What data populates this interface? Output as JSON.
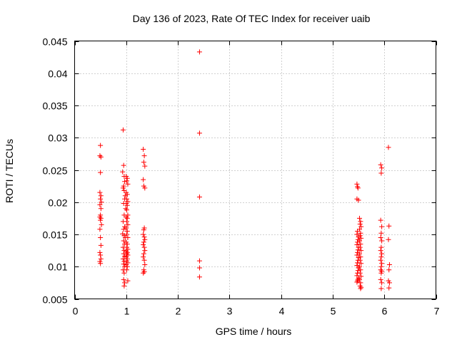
{
  "chart_data": {
    "type": "scatter",
    "title": "Day 136 of 2023, Rate Of TEC Index for receiver uaib",
    "xlabel": "GPS time / hours",
    "ylabel": "ROTI / TECUs",
    "xlim": [
      0,
      7
    ],
    "ylim": [
      0.005,
      0.045
    ],
    "xticks": [
      0,
      1,
      2,
      3,
      4,
      5,
      6,
      7
    ],
    "yticks": [
      0.005,
      0.01,
      0.015,
      0.02,
      0.025,
      0.03,
      0.035,
      0.04,
      0.045
    ],
    "xtick_labels": [
      "0",
      "1",
      "2",
      "3",
      "4",
      "5",
      "6",
      "7"
    ],
    "ytick_labels": [
      "0.005",
      "0.01",
      "0.015",
      "0.02",
      "0.025",
      "0.03",
      "0.035",
      "0.04",
      "0.045"
    ],
    "grid": true,
    "marker": "+",
    "color": "#ff0000",
    "series": [
      {
        "name": "ROTI",
        "points": [
          [
            0.5,
            0.0288
          ],
          [
            0.49,
            0.0272
          ],
          [
            0.51,
            0.027
          ],
          [
            0.5,
            0.0246
          ],
          [
            0.49,
            0.0215
          ],
          [
            0.51,
            0.021
          ],
          [
            0.5,
            0.0205
          ],
          [
            0.52,
            0.02
          ],
          [
            0.49,
            0.0196
          ],
          [
            0.51,
            0.019
          ],
          [
            0.5,
            0.018
          ],
          [
            0.49,
            0.0177
          ],
          [
            0.51,
            0.0175
          ],
          [
            0.5,
            0.0172
          ],
          [
            0.52,
            0.0165
          ],
          [
            0.49,
            0.0158
          ],
          [
            0.5,
            0.0145
          ],
          [
            0.51,
            0.0133
          ],
          [
            0.49,
            0.0122
          ],
          [
            0.5,
            0.0118
          ],
          [
            0.51,
            0.0112
          ],
          [
            0.49,
            0.0108
          ],
          [
            0.5,
            0.0105
          ],
          [
            0.94,
            0.0312
          ],
          [
            0.95,
            0.0257
          ],
          [
            0.93,
            0.0247
          ],
          [
            0.96,
            0.024
          ],
          [
            0.97,
            0.0232
          ],
          [
            0.95,
            0.0225
          ],
          [
            0.94,
            0.0222
          ],
          [
            0.96,
            0.0218
          ],
          [
            0.98,
            0.021
          ],
          [
            0.97,
            0.0205
          ],
          [
            0.95,
            0.0198
          ],
          [
            0.99,
            0.019
          ],
          [
            0.96,
            0.018
          ],
          [
            0.94,
            0.017
          ],
          [
            0.97,
            0.0162
          ],
          [
            0.95,
            0.0158
          ],
          [
            0.93,
            0.0151
          ],
          [
            0.96,
            0.0148
          ],
          [
            0.98,
            0.0145
          ],
          [
            0.95,
            0.014
          ],
          [
            0.97,
            0.0135
          ],
          [
            0.94,
            0.013
          ],
          [
            0.96,
            0.0125
          ],
          [
            0.95,
            0.012
          ],
          [
            0.97,
            0.0116
          ],
          [
            0.94,
            0.0112
          ],
          [
            0.96,
            0.0108
          ],
          [
            0.95,
            0.0104
          ],
          [
            0.97,
            0.01
          ],
          [
            0.94,
            0.0095
          ],
          [
            0.96,
            0.009
          ],
          [
            0.95,
            0.008
          ],
          [
            0.97,
            0.0075
          ],
          [
            0.96,
            0.007
          ],
          [
            1.0,
            0.024
          ],
          [
            1.02,
            0.0237
          ],
          [
            1.01,
            0.0233
          ],
          [
            1.03,
            0.0228
          ],
          [
            1.0,
            0.0215
          ],
          [
            1.02,
            0.0212
          ],
          [
            1.01,
            0.0205
          ],
          [
            1.03,
            0.0201
          ],
          [
            1.0,
            0.0198
          ],
          [
            1.02,
            0.0195
          ],
          [
            1.01,
            0.0188
          ],
          [
            1.03,
            0.018
          ],
          [
            1.0,
            0.0177
          ],
          [
            1.02,
            0.0175
          ],
          [
            1.01,
            0.017
          ],
          [
            1.03,
            0.0165
          ],
          [
            1.0,
            0.016
          ],
          [
            1.02,
            0.0155
          ],
          [
            1.01,
            0.015
          ],
          [
            1.03,
            0.0145
          ],
          [
            1.0,
            0.0138
          ],
          [
            1.02,
            0.0135
          ],
          [
            1.01,
            0.013
          ],
          [
            1.03,
            0.0127
          ],
          [
            1.0,
            0.0124
          ],
          [
            1.02,
            0.0122
          ],
          [
            1.01,
            0.012
          ],
          [
            1.03,
            0.0118
          ],
          [
            1.0,
            0.0115
          ],
          [
            1.02,
            0.0112
          ],
          [
            1.01,
            0.0109
          ],
          [
            1.03,
            0.0106
          ],
          [
            1.0,
            0.0103
          ],
          [
            1.02,
            0.01
          ],
          [
            1.01,
            0.0095
          ],
          [
            1.03,
            0.0078
          ],
          [
            1.33,
            0.0282
          ],
          [
            1.35,
            0.0272
          ],
          [
            1.34,
            0.0262
          ],
          [
            1.36,
            0.0256
          ],
          [
            1.33,
            0.0235
          ],
          [
            1.34,
            0.0225
          ],
          [
            1.36,
            0.0222
          ],
          [
            1.35,
            0.016
          ],
          [
            1.34,
            0.0157
          ],
          [
            1.33,
            0.015
          ],
          [
            1.35,
            0.0146
          ],
          [
            1.36,
            0.0142
          ],
          [
            1.34,
            0.0138
          ],
          [
            1.33,
            0.0134
          ],
          [
            1.35,
            0.013
          ],
          [
            1.36,
            0.0125
          ],
          [
            1.34,
            0.012
          ],
          [
            1.33,
            0.0115
          ],
          [
            1.35,
            0.011
          ],
          [
            1.36,
            0.0103
          ],
          [
            1.34,
            0.0095
          ],
          [
            1.35,
            0.0092
          ],
          [
            1.33,
            0.009
          ],
          [
            2.42,
            0.0433
          ],
          [
            2.42,
            0.0307
          ],
          [
            2.42,
            0.0208
          ],
          [
            2.42,
            0.0109
          ],
          [
            2.42,
            0.0098
          ],
          [
            2.42,
            0.0084
          ],
          [
            5.47,
            0.0228
          ],
          [
            5.48,
            0.0224
          ],
          [
            5.49,
            0.0222
          ],
          [
            5.47,
            0.0205
          ],
          [
            5.5,
            0.0203
          ],
          [
            5.48,
            0.0155
          ],
          [
            5.47,
            0.015
          ],
          [
            5.5,
            0.0146
          ],
          [
            5.49,
            0.0142
          ],
          [
            5.48,
            0.0138
          ],
          [
            5.47,
            0.0134
          ],
          [
            5.5,
            0.013
          ],
          [
            5.49,
            0.0126
          ],
          [
            5.48,
            0.0122
          ],
          [
            5.47,
            0.0118
          ],
          [
            5.5,
            0.0114
          ],
          [
            5.49,
            0.011
          ],
          [
            5.48,
            0.0106
          ],
          [
            5.47,
            0.0102
          ],
          [
            5.5,
            0.0098
          ],
          [
            5.49,
            0.0094
          ],
          [
            5.48,
            0.009
          ],
          [
            5.47,
            0.0086
          ],
          [
            5.5,
            0.0082
          ],
          [
            5.49,
            0.008
          ],
          [
            5.48,
            0.0078
          ],
          [
            5.47,
            0.0076
          ],
          [
            5.52,
            0.0175
          ],
          [
            5.54,
            0.017
          ],
          [
            5.53,
            0.0166
          ],
          [
            5.55,
            0.0162
          ],
          [
            5.52,
            0.0158
          ],
          [
            5.54,
            0.0152
          ],
          [
            5.53,
            0.0148
          ],
          [
            5.55,
            0.0144
          ],
          [
            5.52,
            0.014
          ],
          [
            5.54,
            0.0135
          ],
          [
            5.53,
            0.013
          ],
          [
            5.55,
            0.0125
          ],
          [
            5.52,
            0.012
          ],
          [
            5.54,
            0.0115
          ],
          [
            5.53,
            0.011
          ],
          [
            5.55,
            0.0105
          ],
          [
            5.52,
            0.01
          ],
          [
            5.54,
            0.0095
          ],
          [
            5.53,
            0.009
          ],
          [
            5.55,
            0.0085
          ],
          [
            5.52,
            0.008
          ],
          [
            5.54,
            0.0075
          ],
          [
            5.53,
            0.007
          ],
          [
            5.55,
            0.0068
          ],
          [
            5.54,
            0.0066
          ],
          [
            5.93,
            0.0258
          ],
          [
            5.95,
            0.0253
          ],
          [
            5.94,
            0.0245
          ],
          [
            5.93,
            0.0172
          ],
          [
            5.95,
            0.0162
          ],
          [
            5.94,
            0.0152
          ],
          [
            5.93,
            0.0145
          ],
          [
            5.95,
            0.014
          ],
          [
            5.94,
            0.013
          ],
          [
            5.93,
            0.0125
          ],
          [
            5.95,
            0.012
          ],
          [
            5.94,
            0.0115
          ],
          [
            5.93,
            0.011
          ],
          [
            5.95,
            0.0105
          ],
          [
            5.94,
            0.01
          ],
          [
            5.93,
            0.0095
          ],
          [
            5.95,
            0.0093
          ],
          [
            5.94,
            0.009
          ],
          [
            5.93,
            0.008
          ],
          [
            5.95,
            0.0075
          ],
          [
            5.94,
            0.0066
          ],
          [
            6.08,
            0.0285
          ],
          [
            6.09,
            0.0163
          ],
          [
            6.08,
            0.0142
          ],
          [
            6.1,
            0.0103
          ],
          [
            6.09,
            0.0095
          ],
          [
            6.08,
            0.0078
          ],
          [
            6.1,
            0.0075
          ],
          [
            6.09,
            0.0067
          ]
        ]
      }
    ]
  }
}
